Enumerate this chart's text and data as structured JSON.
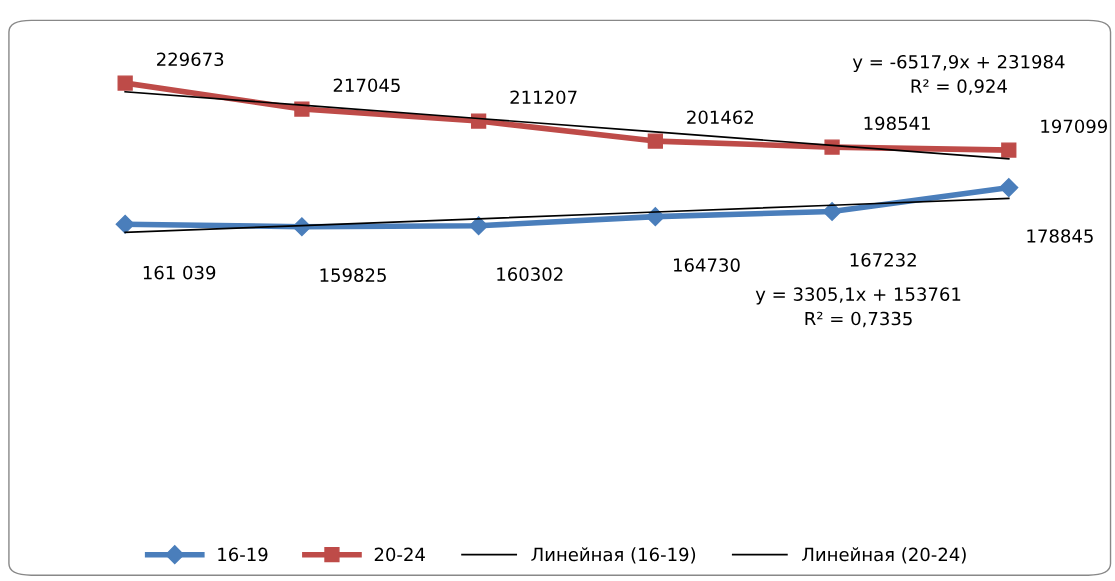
{
  "chart_data": {
    "type": "line",
    "categories": [
      null,
      null,
      null,
      null,
      null,
      null
    ],
    "legend": "bottom",
    "line_style": "solid",
    "series": [
      {
        "name": "16-19",
        "color": "#4a7ebb",
        "marker": "diamond",
        "values": [
          161039,
          159825,
          160302,
          164730,
          167232,
          178845
        ],
        "value_labels": [
          "161 039",
          "159825",
          "160302",
          "164730",
          "167232",
          "178845"
        ]
      },
      {
        "name": "20-24",
        "color": "#be4b48",
        "marker": "square",
        "values": [
          229673,
          217045,
          211207,
          201462,
          198541,
          197099
        ],
        "value_labels": [
          "229673",
          "217045",
          "211207",
          "201462",
          "198541",
          "197099"
        ]
      },
      {
        "name": "Линейная (16-19)",
        "color": "#000000",
        "marker": "none",
        "values": [
          157066,
          160371,
          163676,
          166981,
          170287,
          173592
        ]
      },
      {
        "name": "Линейная (20-24)",
        "color": "#000000",
        "marker": "none",
        "values": [
          225466,
          218948,
          212430,
          205912,
          199395,
          192877
        ]
      }
    ],
    "annotations": [
      "y = -6517,9x + 231984\nR² = 0,924",
      "y = 3305,1x + 153761\nR² = 0,7335"
    ]
  }
}
